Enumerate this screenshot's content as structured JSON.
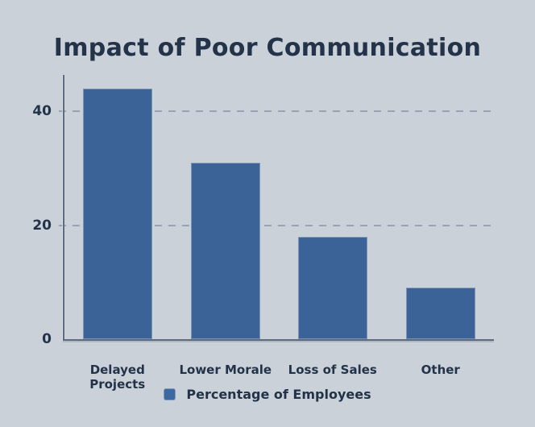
{
  "title": "Impact of Poor Communication",
  "chart_data": {
    "type": "bar",
    "title": "Impact of Poor Communication",
    "categories": [
      "Delayed Projects",
      "Lower Morale",
      "Loss of Sales",
      "Other"
    ],
    "series": [
      {
        "name": "Percentage of Employees",
        "values": [
          44,
          31,
          18,
          9
        ]
      }
    ],
    "xlabel": "",
    "ylabel": "",
    "ylim": [
      0,
      46
    ],
    "yticks": [
      0,
      20,
      40
    ],
    "grid": "horizontal-dashed",
    "legend_position": "bottom-center",
    "colors": {
      "background": "#cbd1d9",
      "bar": "#3b6397",
      "text": "#223349",
      "axis": "#5c6b80",
      "gridline": "#98a3b3"
    }
  },
  "legend": {
    "label": "Percentage of Employees"
  }
}
